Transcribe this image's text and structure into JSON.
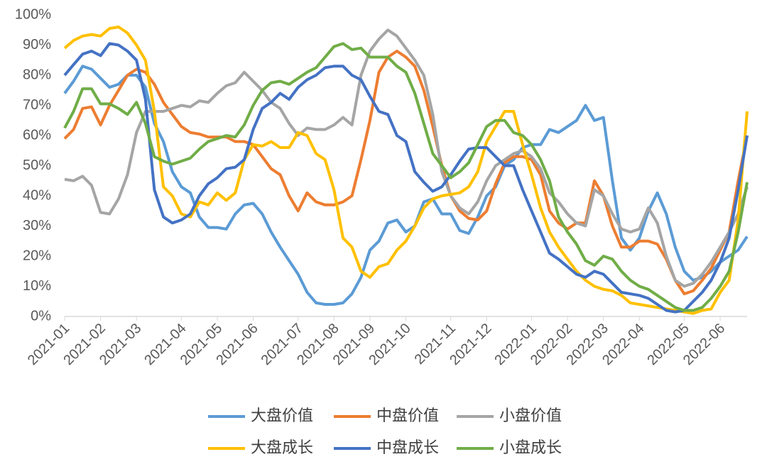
{
  "chart_data": {
    "type": "line",
    "categories": [
      "2021-01",
      null,
      null,
      null,
      "2021-02",
      null,
      null,
      null,
      "2021-03",
      null,
      null,
      null,
      null,
      "2021-04",
      null,
      null,
      null,
      "2021-05",
      null,
      null,
      null,
      "2021-06",
      null,
      null,
      null,
      null,
      "2021-07",
      null,
      null,
      null,
      "2021-08",
      null,
      null,
      null,
      "2021-09",
      null,
      null,
      null,
      "2021-10",
      null,
      null,
      null,
      null,
      "2021-11",
      null,
      null,
      null,
      "2021-12",
      null,
      null,
      null,
      null,
      "2022-01",
      null,
      null,
      null,
      "2022-02",
      null,
      null,
      null,
      "2022-03",
      null,
      null,
      null,
      "2022-04",
      null,
      null,
      null,
      null,
      "2022-05",
      null,
      null,
      null,
      "2022-06",
      null,
      null,
      null
    ],
    "series": [
      {
        "name": "大盘价值",
        "color": "#5b9bd5",
        "values": [
          74,
          78,
          83,
          82,
          79,
          76,
          77,
          80,
          80,
          76,
          64,
          58,
          48,
          43,
          41,
          33,
          29.5,
          29.5,
          29,
          34,
          37,
          37.5,
          34,
          28,
          23,
          18.5,
          14,
          8,
          4.5,
          4,
          4,
          4.5,
          7.5,
          13,
          22,
          25,
          31,
          32,
          28,
          30,
          38,
          39,
          34,
          34,
          28.5,
          27.5,
          33,
          40,
          43,
          50,
          52,
          56,
          57,
          57,
          62,
          61,
          63,
          65,
          70,
          65,
          66,
          45,
          26,
          22,
          26,
          35,
          41,
          34,
          23,
          15,
          12,
          13,
          15,
          18,
          20,
          22,
          26.5
        ]
      },
      {
        "name": "中盘价值",
        "color": "#ed7d31",
        "values": [
          59,
          62,
          69,
          69.5,
          63.5,
          70,
          75,
          80,
          82,
          81,
          77,
          71,
          67,
          63,
          61,
          60.5,
          59.5,
          59.5,
          59.5,
          58,
          58,
          57,
          53,
          49,
          47,
          40,
          35,
          41,
          38,
          37,
          37,
          38,
          40,
          52,
          65,
          81,
          86,
          88,
          86,
          83,
          75,
          63,
          50,
          40,
          35,
          32.5,
          32,
          35,
          44,
          51,
          53,
          53,
          52,
          47,
          35,
          31,
          29,
          31,
          31,
          45,
          40,
          30,
          23,
          23,
          25,
          25,
          24,
          19,
          12,
          7.5,
          8.5,
          12,
          16,
          22,
          28,
          45,
          60
        ]
      },
      {
        "name": "小盘价值",
        "color": "#a5a5a5",
        "values": [
          45.5,
          45,
          46.5,
          43.5,
          34.5,
          34,
          39,
          47,
          61,
          68,
          68,
          68,
          69,
          70,
          69.5,
          71.5,
          71,
          74,
          76.5,
          77.5,
          81,
          78,
          75,
          71,
          69,
          64,
          60,
          62.5,
          62,
          62,
          63.5,
          66,
          63.5,
          80,
          88,
          92,
          95,
          93,
          89,
          85,
          80,
          67,
          48,
          40,
          36,
          34,
          38,
          45,
          50,
          52,
          54,
          55,
          53,
          49,
          41,
          38,
          34,
          31,
          30,
          42,
          40,
          34,
          29,
          28,
          29,
          36,
          31,
          20,
          12,
          10,
          11,
          14,
          18,
          23,
          28,
          34,
          43
        ]
      },
      {
        "name": "大盘成长",
        "color": "#ffc000",
        "values": [
          89,
          91.5,
          93,
          93.5,
          93,
          95.5,
          96,
          94,
          90,
          85,
          68,
          43,
          40,
          34,
          33,
          38,
          37,
          41,
          38.5,
          41,
          52,
          57,
          56.5,
          58,
          56,
          56,
          61,
          60,
          54,
          52,
          42,
          26,
          23,
          15,
          13,
          16.5,
          17.5,
          22,
          25,
          30,
          36,
          39,
          40,
          40.5,
          41,
          43,
          48,
          58,
          63,
          68,
          68,
          57,
          47,
          36,
          28,
          23,
          19,
          15,
          12,
          10,
          9,
          8.5,
          7,
          4.5,
          4,
          3.5,
          3,
          2.5,
          2,
          1.5,
          1,
          2,
          2.5,
          8,
          12,
          32,
          68
        ]
      },
      {
        "name": "中盘成长",
        "color": "#4472c4",
        "values": [
          80,
          83.5,
          87,
          88,
          86.5,
          90.5,
          90,
          88,
          85,
          72,
          42,
          33,
          31,
          32,
          34,
          40,
          44,
          46,
          49,
          49.5,
          52,
          62,
          69,
          71,
          74,
          72,
          76,
          78.5,
          80,
          82.5,
          83,
          83,
          80,
          78.5,
          73,
          68,
          67,
          60,
          58,
          48,
          44.5,
          41.5,
          43,
          47,
          51.5,
          55.5,
          56,
          56,
          53,
          50,
          50,
          42,
          35,
          28,
          21,
          19,
          16.5,
          14,
          13,
          15,
          14,
          11,
          8,
          7.5,
          7,
          6,
          4,
          2,
          1.5,
          2,
          5,
          8,
          12,
          18,
          26,
          42,
          60
        ]
      },
      {
        "name": "小盘成长",
        "color": "#70ad47",
        "values": [
          62.5,
          68,
          75.5,
          75.5,
          70.5,
          70.5,
          69,
          67,
          71,
          64,
          53,
          51.5,
          50.5,
          51.5,
          52.5,
          55.5,
          58,
          59,
          60,
          59.5,
          63.5,
          70,
          75,
          77.5,
          78,
          77,
          79,
          81,
          82.5,
          86,
          89.5,
          90.5,
          88.5,
          89,
          86,
          86,
          86,
          83,
          81,
          74,
          64,
          54,
          50,
          46,
          48,
          51,
          57,
          63,
          65,
          65,
          61,
          60,
          57,
          52,
          45,
          33,
          28,
          24,
          18.5,
          17,
          20,
          19,
          15,
          12,
          10,
          9,
          7,
          5,
          3,
          2,
          2,
          3,
          6,
          10,
          15,
          28,
          44.5
        ]
      }
    ],
    "ylim": [
      0,
      100
    ],
    "yticks": [
      {
        "value": 0,
        "label": "0%"
      },
      {
        "value": 10,
        "label": "10%"
      },
      {
        "value": 20,
        "label": "20%"
      },
      {
        "value": 30,
        "label": "30%"
      },
      {
        "value": 40,
        "label": "40%"
      },
      {
        "value": 50,
        "label": "50%"
      },
      {
        "value": 60,
        "label": "60%"
      },
      {
        "value": 70,
        "label": "70%"
      },
      {
        "value": 80,
        "label": "80%"
      },
      {
        "value": 90,
        "label": "90%"
      },
      {
        "value": 100,
        "label": "100%"
      }
    ],
    "grid": false,
    "legend": "bottom"
  }
}
